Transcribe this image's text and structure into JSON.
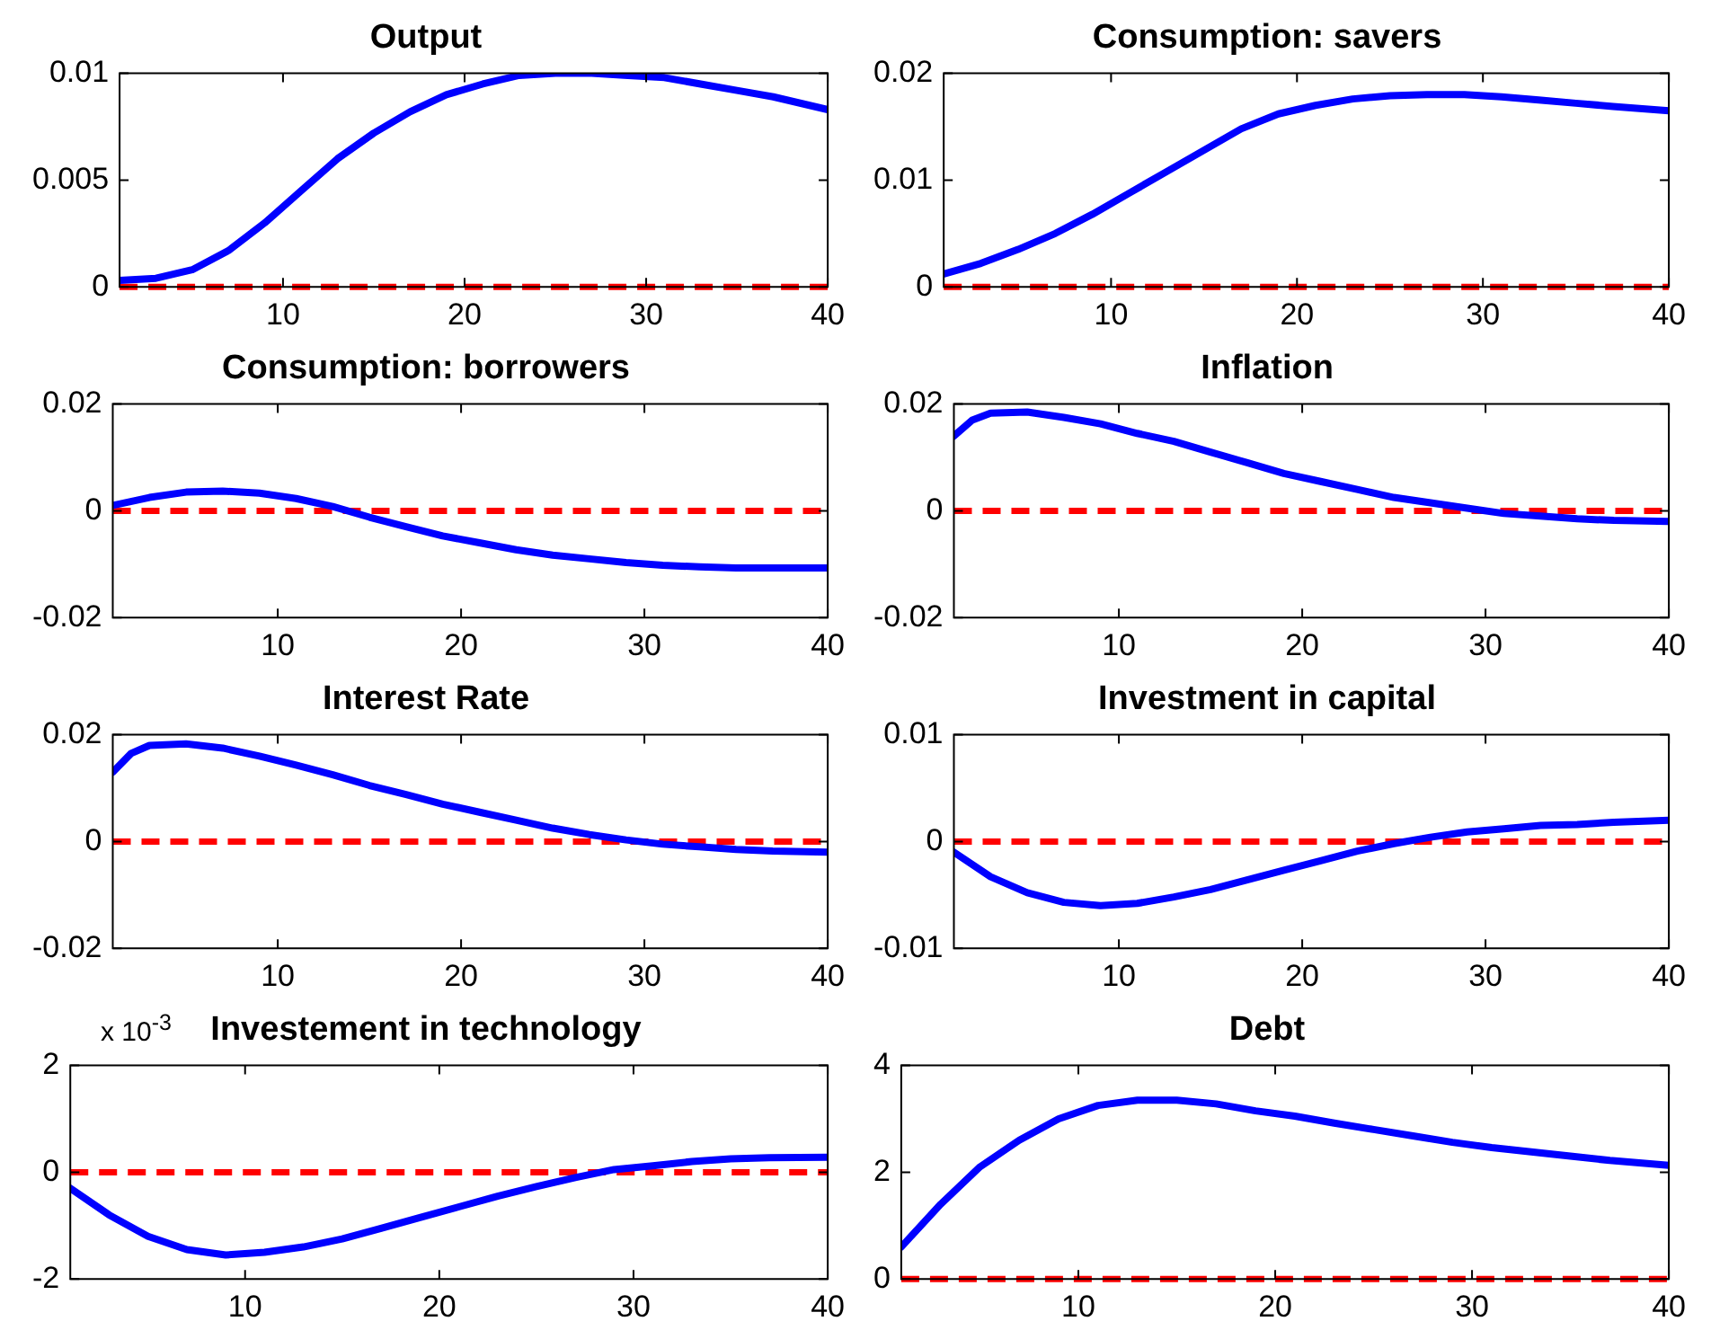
{
  "chart_data": [
    {
      "type": "line",
      "title": "Output",
      "x": [
        1,
        3,
        5,
        7,
        9,
        11,
        13,
        15,
        17,
        19,
        21,
        23,
        25,
        27,
        29,
        31,
        33,
        35,
        37,
        40
      ],
      "xlim": [
        1,
        40
      ],
      "xticks": [
        10,
        20,
        30,
        40
      ],
      "ylim": [
        0,
        0.01
      ],
      "yticks": [
        0,
        0.005,
        0.01
      ],
      "series": [
        {
          "color": "#0000ff",
          "values": [
            0.0003,
            0.0004,
            0.0008,
            0.0017,
            0.003,
            0.0045,
            0.006,
            0.0072,
            0.0082,
            0.009,
            0.0095,
            0.0099,
            0.01,
            0.01,
            0.0099,
            0.0098,
            0.0095,
            0.0092,
            0.0089,
            0.0083
          ]
        }
      ],
      "ref_lines": [
        {
          "axis": "y",
          "value": 0,
          "color": "#ff0000",
          "line_style": "dashed"
        }
      ]
    },
    {
      "type": "line",
      "title": "Consumption: savers",
      "x": [
        1,
        3,
        5,
        7,
        9,
        11,
        13,
        15,
        17,
        19,
        21,
        23,
        25,
        27,
        29,
        31,
        33,
        35,
        37,
        40
      ],
      "xlim": [
        1,
        40
      ],
      "xticks": [
        10,
        20,
        30,
        40
      ],
      "ylim": [
        0,
        0.02
      ],
      "yticks": [
        0,
        0.01,
        0.02
      ],
      "series": [
        {
          "color": "#0000ff",
          "values": [
            0.0012,
            0.0022,
            0.0035,
            0.005,
            0.0068,
            0.0088,
            0.0108,
            0.0128,
            0.0148,
            0.0162,
            0.017,
            0.0176,
            0.0179,
            0.018,
            0.018,
            0.0178,
            0.0175,
            0.0172,
            0.0169,
            0.0165
          ]
        }
      ],
      "ref_lines": [
        {
          "axis": "y",
          "value": 0,
          "color": "#ff0000",
          "line_style": "dashed"
        }
      ]
    },
    {
      "type": "line",
      "title": "Consumption: borrowers",
      "x": [
        1,
        3,
        5,
        7,
        9,
        11,
        13,
        15,
        17,
        19,
        21,
        23,
        25,
        27,
        29,
        31,
        33,
        35,
        37,
        40
      ],
      "xlim": [
        1,
        40
      ],
      "xticks": [
        10,
        20,
        30,
        40
      ],
      "ylim": [
        -0.02,
        0.02
      ],
      "yticks": [
        -0.02,
        0,
        0.02
      ],
      "series": [
        {
          "color": "#0000ff",
          "values": [
            0.001,
            0.0025,
            0.0035,
            0.0037,
            0.0033,
            0.0023,
            0.0008,
            -0.0012,
            -0.003,
            -0.0047,
            -0.006,
            -0.0073,
            -0.0083,
            -0.009,
            -0.0097,
            -0.0102,
            -0.0105,
            -0.0107,
            -0.0107,
            -0.0107
          ]
        }
      ],
      "ref_lines": [
        {
          "axis": "y",
          "value": 0,
          "color": "#ff0000",
          "line_style": "dashed"
        }
      ]
    },
    {
      "type": "line",
      "title": "Inflation",
      "x": [
        1,
        2,
        3,
        5,
        7,
        9,
        11,
        13,
        15,
        17,
        19,
        21,
        23,
        25,
        27,
        29,
        31,
        33,
        35,
        37,
        40
      ],
      "xlim": [
        1,
        40
      ],
      "xticks": [
        10,
        20,
        30,
        40
      ],
      "ylim": [
        -0.02,
        0.02
      ],
      "yticks": [
        -0.02,
        0,
        0.02
      ],
      "series": [
        {
          "color": "#0000ff",
          "values": [
            0.014,
            0.017,
            0.0183,
            0.0185,
            0.0175,
            0.0163,
            0.0145,
            0.013,
            0.011,
            0.009,
            0.007,
            0.0055,
            0.004,
            0.0025,
            0.0015,
            0.0005,
            -0.0005,
            -0.001,
            -0.0015,
            -0.0018,
            -0.002
          ]
        }
      ],
      "ref_lines": [
        {
          "axis": "y",
          "value": 0,
          "color": "#ff0000",
          "line_style": "dashed"
        }
      ]
    },
    {
      "type": "line",
      "title": "Interest Rate",
      "x": [
        1,
        2,
        3,
        5,
        7,
        9,
        11,
        13,
        15,
        17,
        19,
        21,
        23,
        25,
        27,
        29,
        31,
        33,
        35,
        37,
        40
      ],
      "xlim": [
        1,
        40
      ],
      "xticks": [
        10,
        20,
        30,
        40
      ],
      "ylim": [
        -0.02,
        0.02
      ],
      "yticks": [
        -0.02,
        0,
        0.02
      ],
      "series": [
        {
          "color": "#0000ff",
          "values": [
            0.013,
            0.0165,
            0.018,
            0.0183,
            0.0175,
            0.016,
            0.0143,
            0.0125,
            0.0105,
            0.0088,
            0.007,
            0.0055,
            0.004,
            0.0025,
            0.0013,
            0.0003,
            -0.0005,
            -0.001,
            -0.0015,
            -0.0018,
            -0.002
          ]
        }
      ],
      "ref_lines": [
        {
          "axis": "y",
          "value": 0,
          "color": "#ff0000",
          "line_style": "dashed"
        }
      ]
    },
    {
      "type": "line",
      "title": "Investment in capital",
      "x": [
        1,
        3,
        5,
        7,
        9,
        11,
        13,
        15,
        17,
        19,
        21,
        23,
        25,
        27,
        29,
        31,
        33,
        35,
        37,
        40
      ],
      "xlim": [
        1,
        40
      ],
      "xticks": [
        10,
        20,
        30,
        40
      ],
      "ylim": [
        -0.01,
        0.01
      ],
      "yticks": [
        -0.01,
        0,
        0.01
      ],
      "series": [
        {
          "color": "#0000ff",
          "values": [
            -0.001,
            -0.0033,
            -0.0048,
            -0.0057,
            -0.006,
            -0.0058,
            -0.0052,
            -0.0045,
            -0.0036,
            -0.0027,
            -0.0018,
            -0.0009,
            -0.0002,
            0.0004,
            0.0009,
            0.0012,
            0.0015,
            0.0016,
            0.0018,
            0.002
          ]
        }
      ],
      "ref_lines": [
        {
          "axis": "y",
          "value": 0,
          "color": "#ff0000",
          "line_style": "dashed"
        }
      ]
    },
    {
      "type": "line",
      "title": "Investement in technology",
      "annotations": [
        "x 10$^{-3}$"
      ],
      "x": [
        1,
        3,
        5,
        7,
        9,
        11,
        13,
        15,
        17,
        19,
        21,
        23,
        25,
        27,
        29,
        31,
        33,
        35,
        37,
        40
      ],
      "xlim": [
        1,
        40
      ],
      "xticks": [
        10,
        20,
        30,
        40
      ],
      "ylim": [
        -2,
        2
      ],
      "yticks": [
        -2,
        0,
        2
      ],
      "series": [
        {
          "color": "#0000ff",
          "values": [
            -0.3,
            -0.8,
            -1.2,
            -1.45,
            -1.55,
            -1.5,
            -1.4,
            -1.25,
            -1.05,
            -0.85,
            -0.65,
            -0.45,
            -0.27,
            -0.1,
            0.05,
            0.12,
            0.2,
            0.25,
            0.27,
            0.28
          ]
        }
      ],
      "ref_lines": [
        {
          "axis": "y",
          "value": 0,
          "color": "#ff0000",
          "line_style": "dashed"
        }
      ]
    },
    {
      "type": "line",
      "title": "Debt",
      "x": [
        1,
        3,
        5,
        7,
        9,
        11,
        13,
        15,
        17,
        19,
        21,
        23,
        25,
        27,
        29,
        31,
        33,
        35,
        37,
        40
      ],
      "xlim": [
        1,
        40
      ],
      "xticks": [
        10,
        20,
        30,
        40
      ],
      "ylim": [
        0,
        4
      ],
      "yticks": [
        0,
        2,
        4
      ],
      "series": [
        {
          "color": "#0000ff",
          "values": [
            0.6,
            1.4,
            2.1,
            2.6,
            3.0,
            3.25,
            3.35,
            3.35,
            3.28,
            3.15,
            3.05,
            2.92,
            2.8,
            2.68,
            2.56,
            2.46,
            2.38,
            2.3,
            2.22,
            2.13
          ]
        }
      ],
      "ref_lines": [
        {
          "axis": "y",
          "value": 0,
          "color": "#ff0000",
          "line_style": "dashed"
        }
      ]
    }
  ]
}
